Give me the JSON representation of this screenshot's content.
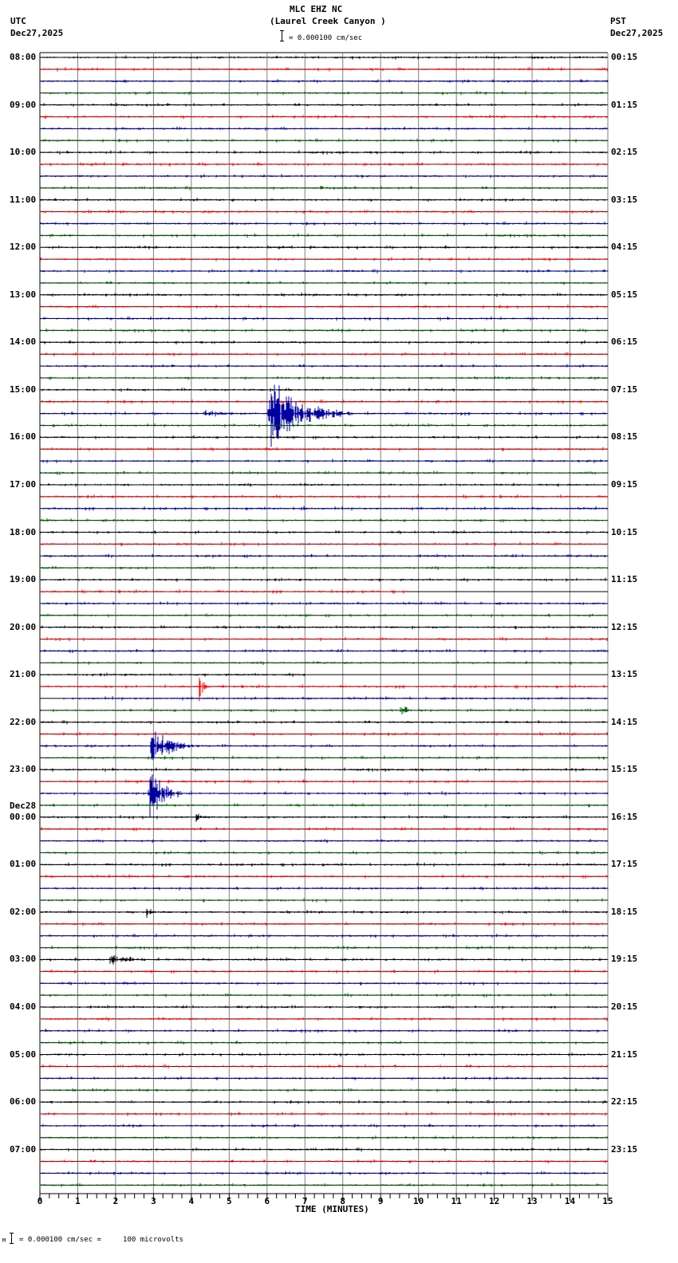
{
  "header": {
    "station": "MLC EHZ NC",
    "location": "(Laurel Creek Canyon )",
    "scale_text": "= 0.000100 cm/sec",
    "left_tz": "UTC",
    "left_date": "Dec27,2025",
    "right_tz": "PST",
    "right_date": "Dec27,2025"
  },
  "footer": {
    "scale_text": "= 0.000100 cm/sec =     100 microvolts",
    "marker": "M"
  },
  "colors": {
    "trace_cycle": [
      "#000000",
      "#ff0000",
      "#0000a0",
      "#006000"
    ],
    "grid": "#808080",
    "background": "#ffffff"
  },
  "chart_data": {
    "type": "line",
    "title": "MLC EHZ NC (Laurel Creek Canyon )",
    "subtitle": "= 0.000100 cm/sec",
    "xlabel": "TIME (MINUTES)",
    "ylabel": "",
    "xlim": [
      0,
      15
    ],
    "x_ticks": [
      "0",
      "1",
      "2",
      "3",
      "4",
      "5",
      "6",
      "7",
      "8",
      "9",
      "10",
      "11",
      "12",
      "13",
      "14",
      "15"
    ],
    "grid": true,
    "traces_per_hour": 4,
    "minutes_per_trace": 15,
    "utc_labels": [
      "08:00",
      "09:00",
      "10:00",
      "11:00",
      "12:00",
      "13:00",
      "14:00",
      "15:00",
      "16:00",
      "17:00",
      "18:00",
      "19:00",
      "20:00",
      "21:00",
      "22:00",
      "23:00",
      "00:00",
      "01:00",
      "02:00",
      "03:00",
      "04:00",
      "05:00",
      "06:00",
      "07:00"
    ],
    "date_change_label": {
      "index": 16,
      "text": "Dec28"
    },
    "pst_labels": [
      "00:15",
      "01:15",
      "02:15",
      "03:15",
      "04:15",
      "05:15",
      "06:15",
      "07:15",
      "08:15",
      "09:15",
      "10:15",
      "11:15",
      "12:15",
      "13:15",
      "14:15",
      "15:15",
      "16:15",
      "17:15",
      "18:15",
      "19:15",
      "20:15",
      "21:15",
      "22:15",
      "23:15"
    ],
    "events": [
      {
        "trace": 11,
        "minute": 7.4,
        "amp": 5,
        "dur": 0.3,
        "note": "small spike 10:45"
      },
      {
        "trace": 30,
        "minute": 4.3,
        "amp": 6,
        "dur": 1.6,
        "note": "P-wave onset 15:15"
      },
      {
        "trace": 30,
        "minute": 6.0,
        "amp": 55,
        "dur": 2.3,
        "note": "main quake 15:15"
      },
      {
        "trace": 38,
        "minute": 6.9,
        "amp": 7,
        "dur": 0.3,
        "note": "small event 17:30"
      },
      {
        "trace": 53,
        "minute": 4.2,
        "amp": 28,
        "dur": 0.3,
        "note": "spike 21:15 red"
      },
      {
        "trace": 55,
        "minute": 9.5,
        "amp": 10,
        "dur": 0.6,
        "note": "green event 21:45"
      },
      {
        "trace": 58,
        "minute": 2.9,
        "amp": 34,
        "dur": 1.3,
        "note": "quake 22:30"
      },
      {
        "trace": 62,
        "minute": 2.85,
        "amp": 40,
        "dur": 1.2,
        "note": "quake 23:15 red"
      },
      {
        "trace": 62,
        "minute": 10.6,
        "amp": 6,
        "dur": 0.3,
        "note": "red small 23:15"
      },
      {
        "trace": 64,
        "minute": 4.1,
        "amp": 9,
        "dur": 0.5,
        "note": "green 23:45"
      },
      {
        "trace": 72,
        "minute": 2.8,
        "amp": 8,
        "dur": 0.4,
        "note": "black 02:00"
      },
      {
        "trace": 76,
        "minute": 1.8,
        "amp": 8,
        "dur": 1.5,
        "note": "black 03:00"
      },
      {
        "trace": 81,
        "minute": 9.7,
        "amp": 3,
        "dur": 0.2,
        "note": "red small 04:15"
      }
    ],
    "flat_segments": [
      {
        "trace": 45,
        "from_minute": 9.7,
        "to_minute": 15
      },
      {
        "trace": 52,
        "from_minute": 7.0,
        "to_minute": 15
      },
      {
        "trace": 54,
        "from_minute": 0,
        "to_minute": 0.6
      }
    ]
  }
}
